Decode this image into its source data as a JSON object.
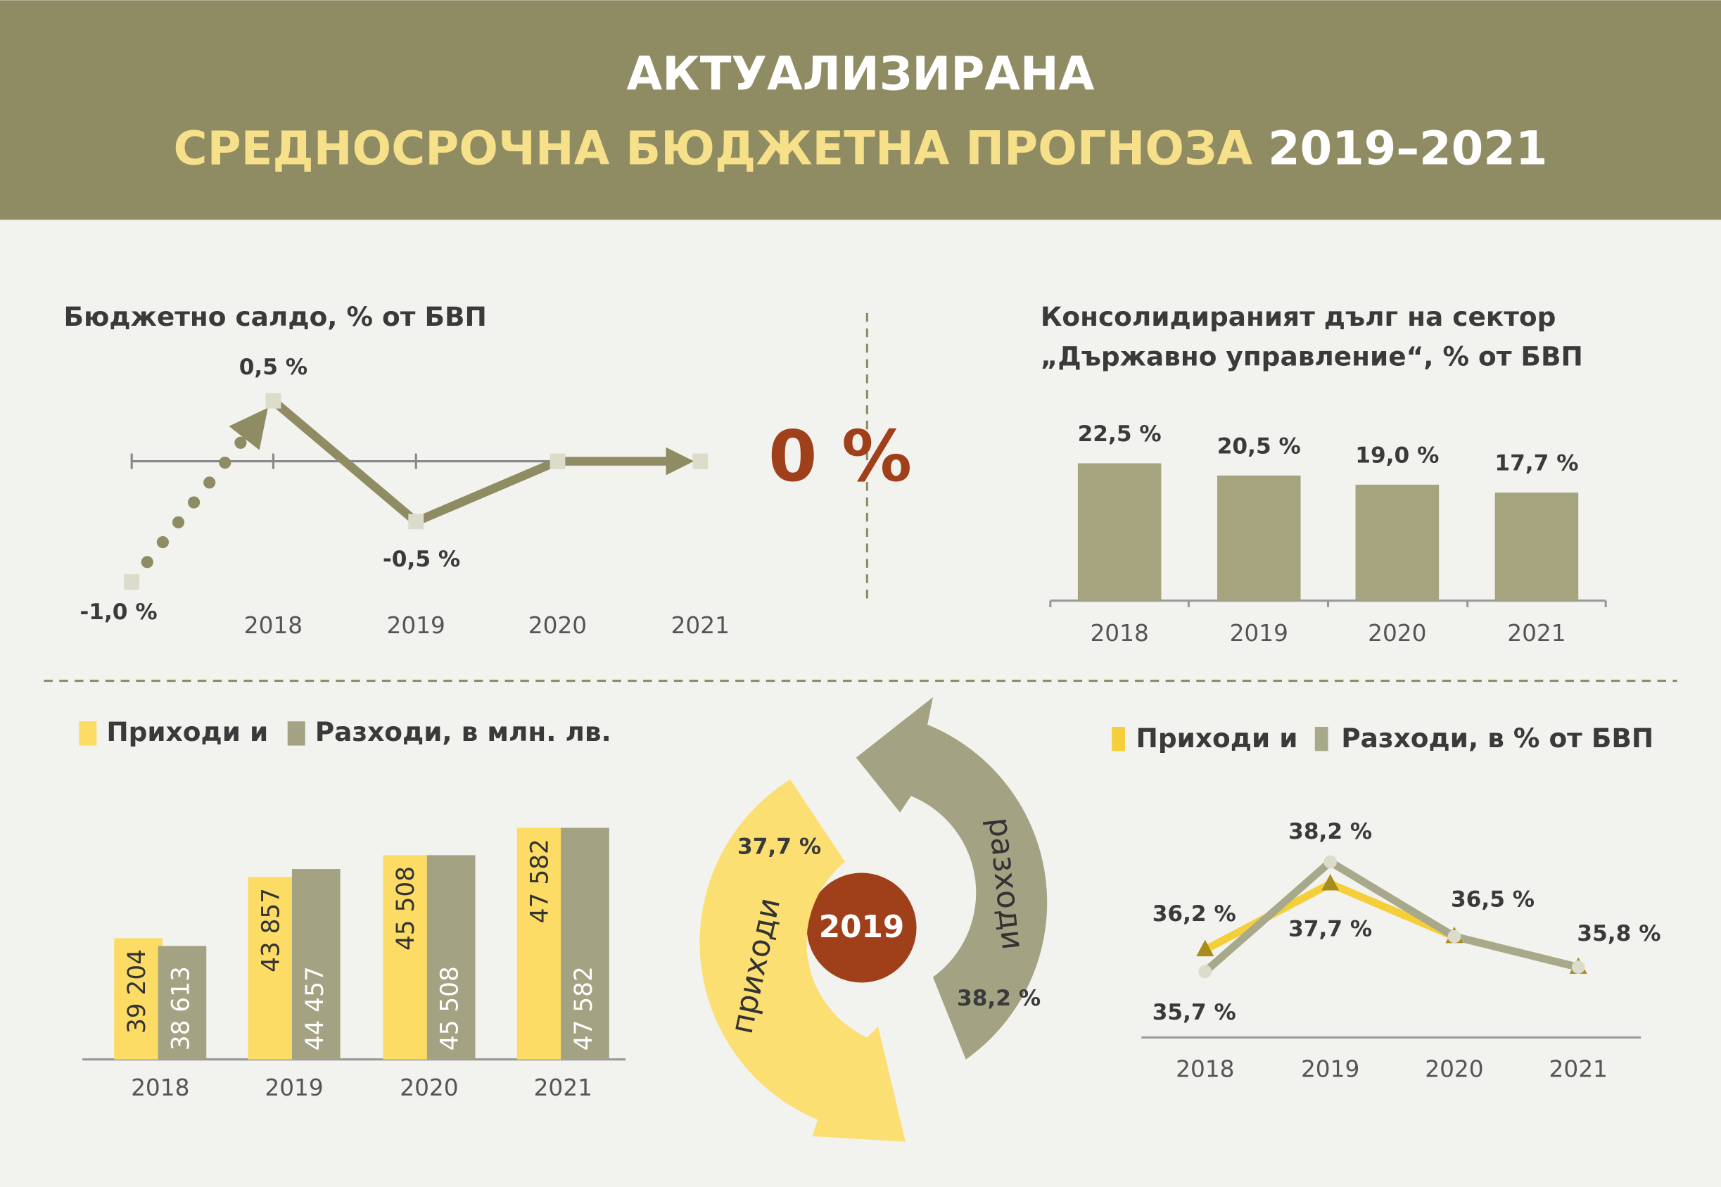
{
  "header": {
    "title": "АКТУАЛИЗИРАНА",
    "subtitle": "СРЕДНОСРОЧНА БЮДЖЕТНА ПРОГНОЗА",
    "period": "2019–2021"
  },
  "chart_data": [
    {
      "type": "line",
      "title": "Бюджетно салдо, % от БВП",
      "categories": [
        null,
        "2018",
        "2019",
        "2020",
        "2021"
      ],
      "values": [
        -1.0,
        0.5,
        -0.5,
        0,
        0
      ],
      "value_labels": [
        "-1,0 %",
        "0,5 %",
        "-0,5 %",
        null,
        "0 %"
      ],
      "color": "#8f8c63",
      "ylim": [
        -1.0,
        0.5
      ]
    },
    {
      "type": "bar",
      "title": [
        "Консолидираният дълг на сектор",
        "„Държавно управление“, % от БВП"
      ],
      "categories": [
        "2018",
        "2019",
        "2020",
        "2021"
      ],
      "values": [
        22.5,
        20.5,
        19.0,
        17.7
      ],
      "value_labels": [
        "22,5 %",
        "20,5 %",
        "19,0 %",
        "17,7 %"
      ],
      "color": "#a5a47f",
      "ylim": [
        0,
        25
      ]
    },
    {
      "type": "grouped_bar",
      "categories": [
        "2018",
        "2019",
        "2020",
        "2021"
      ],
      "series": [
        {
          "name": "Приходи и",
          "color": "#fddc66",
          "values": [
            39204,
            43857,
            45508,
            47582
          ],
          "value_labels": [
            "39 204",
            "43 857",
            "45 508",
            "47 582"
          ]
        },
        {
          "name": "Разходи, в млн. лв.",
          "color": "#a3a283",
          "values": [
            38613,
            44457,
            45508,
            47582
          ],
          "value_labels": [
            "38 613",
            "44 457",
            "45 508",
            "47 582"
          ]
        }
      ],
      "ylim": [
        30000,
        50000
      ]
    },
    {
      "type": "cycle",
      "center_label": "2019",
      "categories": [
        "приходи",
        "разходи"
      ],
      "values": [
        37.7,
        38.2
      ],
      "value_labels": [
        "37,7 %",
        "38,2 %"
      ],
      "colors": [
        "#fcdf72",
        "#a3a283"
      ],
      "center_color": "#a0401b"
    },
    {
      "type": "line",
      "categories": [
        "2018",
        "2019",
        "2020",
        "2021"
      ],
      "series": [
        {
          "name": "Приходи и",
          "color": "#f5cf3a",
          "values": [
            36.2,
            37.7,
            36.5,
            35.8
          ],
          "value_labels": [
            "36,2 %",
            "37,7 %",
            "36,5 %",
            "35,8 %"
          ]
        },
        {
          "name": "Разходи, в % от БВП",
          "color": "#a8a88a",
          "values": [
            35.7,
            38.2,
            36.5,
            35.8
          ],
          "value_labels": [
            "35,7 %",
            "38,2 %",
            null,
            null
          ]
        }
      ],
      "ylim": [
        34,
        39
      ]
    }
  ]
}
